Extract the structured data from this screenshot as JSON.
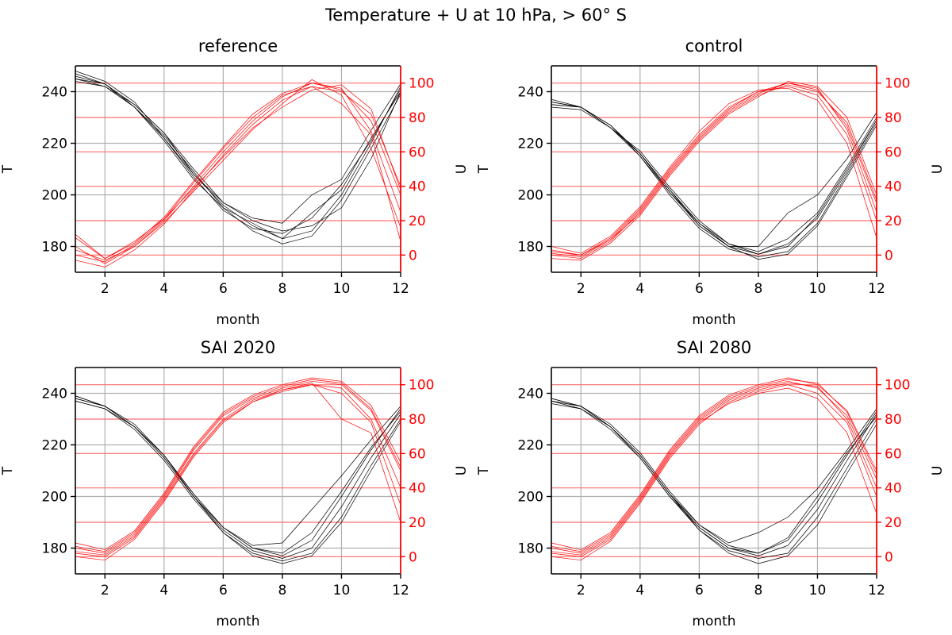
{
  "figure": {
    "suptitle": "Temperature + U at 10 hPa, > 60° S"
  },
  "colors": {
    "temperature": "#000000",
    "wind": "#ff0000",
    "grid": "#b0b0b0",
    "wind_grid": "#ff6f6f"
  },
  "chart_data": [
    {
      "type": "line",
      "title": "reference",
      "xlabel": "month",
      "ylabel": "T",
      "y2label": "U",
      "xlim": [
        1,
        12
      ],
      "ylim": [
        170,
        250
      ],
      "y2lim": [
        -10,
        110
      ],
      "xticks": [
        2,
        4,
        6,
        8,
        10,
        12
      ],
      "yticks": [
        180,
        200,
        220,
        240
      ],
      "y2ticks": [
        0,
        20,
        40,
        60,
        80,
        100
      ],
      "grid": true,
      "x": [
        1,
        2,
        3,
        4,
        5,
        6,
        7,
        8,
        9,
        10,
        11,
        12
      ],
      "temperature_series": {
        "axis": "left",
        "members": [
          [
            245,
            242,
            235,
            224,
            210,
            197,
            190,
            186,
            188,
            195,
            214,
            240
          ],
          [
            247,
            243,
            234,
            222,
            208,
            196,
            188,
            183,
            186,
            200,
            220,
            242
          ],
          [
            244,
            242,
            234,
            223,
            209,
            195,
            186,
            181,
            184,
            198,
            218,
            239
          ],
          [
            246,
            243,
            235,
            224,
            208,
            197,
            191,
            189,
            200,
            206,
            225,
            243
          ],
          [
            248,
            244,
            236,
            222,
            207,
            194,
            187,
            185,
            191,
            204,
            221,
            241
          ],
          [
            245,
            243,
            234,
            221,
            206,
            195,
            189,
            183,
            193,
            202,
            222,
            240
          ]
        ]
      },
      "wind_series": {
        "axis": "right",
        "members": [
          [
            5,
            -5,
            5,
            20,
            40,
            60,
            78,
            92,
            100,
            96,
            78,
            35
          ],
          [
            10,
            -2,
            7,
            22,
            43,
            63,
            82,
            94,
            100,
            97,
            72,
            25
          ],
          [
            -3,
            -7,
            3,
            18,
            38,
            58,
            76,
            90,
            98,
            95,
            82,
            40
          ],
          [
            12,
            -2,
            8,
            21,
            42,
            62,
            80,
            93,
            98,
            88,
            70,
            8
          ],
          [
            0,
            -4,
            6,
            21,
            39,
            57,
            74,
            86,
            96,
            99,
            85,
            38
          ],
          [
            3,
            -3,
            5,
            19,
            37,
            55,
            73,
            88,
            102,
            93,
            62,
            16
          ]
        ]
      }
    },
    {
      "type": "line",
      "title": "control",
      "xlabel": "month",
      "ylabel": "T",
      "y2label": "U",
      "xlim": [
        1,
        12
      ],
      "ylim": [
        170,
        250
      ],
      "y2lim": [
        -10,
        110
      ],
      "xticks": [
        2,
        4,
        6,
        8,
        10,
        12
      ],
      "yticks": [
        180,
        200,
        220,
        240
      ],
      "y2ticks": [
        0,
        20,
        40,
        60,
        80,
        100
      ],
      "grid": true,
      "x": [
        1,
        2,
        3,
        4,
        5,
        6,
        7,
        8,
        9,
        10,
        11,
        12
      ],
      "temperature_series": {
        "axis": "left",
        "members": [
          [
            235,
            234,
            227,
            216,
            202,
            188,
            180,
            177,
            180,
            192,
            210,
            229
          ],
          [
            236,
            234,
            226,
            215,
            200,
            187,
            179,
            176,
            178,
            189,
            208,
            228
          ],
          [
            234,
            233,
            226,
            217,
            203,
            190,
            181,
            178,
            183,
            193,
            211,
            230
          ],
          [
            237,
            234,
            227,
            216,
            201,
            189,
            180,
            180,
            193,
            200,
            214,
            232
          ],
          [
            235,
            234,
            227,
            215,
            201,
            188,
            180,
            175,
            177,
            188,
            207,
            227
          ],
          [
            236,
            234,
            226,
            216,
            202,
            189,
            181,
            177,
            181,
            191,
            209,
            229
          ]
        ]
      },
      "wind_series": {
        "axis": "right",
        "members": [
          [
            0,
            -2,
            8,
            25,
            48,
            68,
            84,
            94,
            100,
            96,
            75,
            30
          ],
          [
            3,
            0,
            10,
            27,
            50,
            70,
            86,
            95,
            98,
            93,
            70,
            20
          ],
          [
            -2,
            -3,
            7,
            23,
            46,
            66,
            82,
            92,
            101,
            98,
            80,
            35
          ],
          [
            5,
            1,
            11,
            28,
            51,
            72,
            88,
            96,
            97,
            90,
            65,
            10
          ],
          [
            1,
            -1,
            9,
            24,
            47,
            67,
            83,
            93,
            99,
            95,
            77,
            32
          ],
          [
            2,
            0,
            9,
            26,
            49,
            69,
            85,
            95,
            100,
            97,
            73,
            25
          ]
        ]
      }
    },
    {
      "type": "line",
      "title": "SAI 2020",
      "xlabel": "month",
      "ylabel": "T",
      "y2label": "U",
      "xlim": [
        1,
        12
      ],
      "ylim": [
        170,
        250
      ],
      "y2lim": [
        -10,
        110
      ],
      "xticks": [
        2,
        4,
        6,
        8,
        10,
        12
      ],
      "yticks": [
        180,
        200,
        220,
        240
      ],
      "y2ticks": [
        0,
        20,
        40,
        60,
        80,
        100
      ],
      "grid": true,
      "x": [
        1,
        2,
        3,
        4,
        5,
        6,
        7,
        8,
        9,
        10,
        11,
        12
      ],
      "temperature_series": {
        "axis": "left",
        "members": [
          [
            238,
            235,
            227,
            215,
            200,
            187,
            179,
            176,
            180,
            196,
            215,
            232
          ],
          [
            239,
            235,
            228,
            216,
            201,
            188,
            180,
            177,
            183,
            200,
            218,
            234
          ],
          [
            237,
            234,
            226,
            214,
            199,
            186,
            178,
            175,
            178,
            192,
            212,
            230
          ],
          [
            238,
            235,
            227,
            216,
            200,
            188,
            181,
            182,
            195,
            208,
            222,
            235
          ],
          [
            239,
            235,
            227,
            215,
            200,
            186,
            177,
            174,
            177,
            190,
            210,
            229
          ],
          [
            237,
            234,
            227,
            216,
            201,
            188,
            180,
            178,
            186,
            202,
            219,
            233
          ]
        ]
      },
      "wind_series": {
        "axis": "right",
        "members": [
          [
            5,
            2,
            13,
            35,
            62,
            82,
            92,
            98,
            102,
            100,
            85,
            50
          ],
          [
            8,
            4,
            15,
            37,
            64,
            84,
            94,
            100,
            104,
            102,
            88,
            55
          ],
          [
            0,
            -2,
            10,
            32,
            58,
            78,
            90,
            96,
            100,
            98,
            80,
            40
          ],
          [
            3,
            1,
            12,
            34,
            60,
            80,
            91,
            97,
            101,
            80,
            72,
            20
          ],
          [
            6,
            3,
            14,
            36,
            63,
            83,
            93,
            99,
            103,
            101,
            86,
            52
          ],
          [
            2,
            0,
            11,
            33,
            59,
            79,
            90,
            97,
            100,
            95,
            78,
            30
          ]
        ]
      }
    },
    {
      "type": "line",
      "title": "SAI 2080",
      "xlabel": "month",
      "ylabel": "T",
      "y2label": "U",
      "xlim": [
        1,
        12
      ],
      "ylim": [
        170,
        250
      ],
      "y2lim": [
        -10,
        110
      ],
      "xticks": [
        2,
        4,
        6,
        8,
        10,
        12
      ],
      "yticks": [
        180,
        200,
        220,
        240
      ],
      "y2ticks": [
        0,
        20,
        40,
        60,
        80,
        100
      ],
      "grid": true,
      "x": [
        1,
        2,
        3,
        4,
        5,
        6,
        7,
        8,
        9,
        10,
        11,
        12
      ],
      "temperature_series": {
        "axis": "left",
        "members": [
          [
            237,
            235,
            227,
            216,
            201,
            188,
            180,
            177,
            181,
            195,
            214,
            232
          ],
          [
            238,
            235,
            228,
            217,
            202,
            189,
            181,
            178,
            183,
            198,
            216,
            233
          ],
          [
            236,
            234,
            226,
            215,
            200,
            187,
            179,
            176,
            178,
            192,
            211,
            230
          ],
          [
            237,
            235,
            227,
            216,
            201,
            189,
            182,
            186,
            192,
            203,
            218,
            234
          ],
          [
            238,
            235,
            227,
            216,
            201,
            187,
            178,
            174,
            177,
            189,
            209,
            228
          ],
          [
            237,
            234,
            227,
            215,
            200,
            188,
            180,
            178,
            184,
            200,
            217,
            231
          ]
        ]
      },
      "wind_series": {
        "axis": "right",
        "members": [
          [
            5,
            2,
            12,
            34,
            60,
            80,
            92,
            98,
            102,
            98,
            82,
            45
          ],
          [
            8,
            4,
            14,
            36,
            62,
            82,
            94,
            100,
            104,
            100,
            85,
            50
          ],
          [
            0,
            -2,
            9,
            31,
            57,
            77,
            90,
            96,
            100,
            95,
            78,
            35
          ],
          [
            3,
            1,
            11,
            33,
            59,
            79,
            91,
            97,
            101,
            99,
            80,
            40
          ],
          [
            6,
            3,
            13,
            35,
            61,
            81,
            93,
            99,
            103,
            101,
            84,
            48
          ],
          [
            2,
            0,
            10,
            32,
            58,
            78,
            89,
            95,
            98,
            92,
            72,
            25
          ]
        ]
      }
    }
  ]
}
